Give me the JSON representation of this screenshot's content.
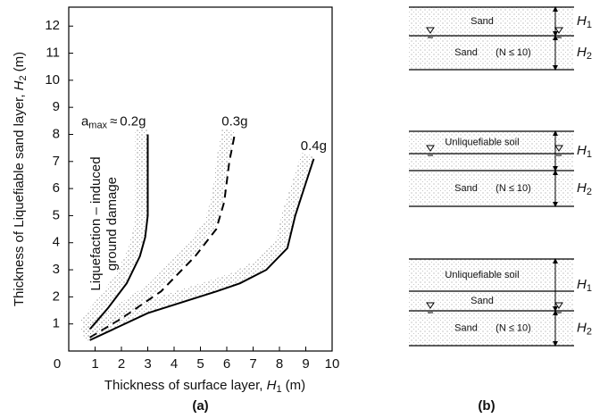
{
  "chart_data": {
    "type": "line",
    "x_label": {
      "text": "Thickness of surface layer, ",
      "symbol": "H",
      "subscript": "1",
      "unit": "(m)"
    },
    "y_label": {
      "text": "Thickness of Liquefiable sand layer, ",
      "symbol": "H",
      "subscript": "2",
      "unit": "(m)"
    },
    "annotation": [
      "Liquefaction – induced",
      "ground damage"
    ],
    "curve_prefix": {
      "symbol": "a",
      "subscript": "max",
      "relation": "≈"
    },
    "caption": "(a)",
    "xlim": [
      0,
      10
    ],
    "ylim": [
      0,
      12.7
    ],
    "xticks": [
      0,
      1,
      2,
      3,
      4,
      5,
      6,
      7,
      8,
      9,
      10
    ],
    "yticks": [
      1,
      2,
      3,
      4,
      5,
      6,
      7,
      8,
      9,
      10,
      11,
      12
    ],
    "series": [
      {
        "name": "0.2g",
        "color": "#000000",
        "dash": false,
        "x": [
          0.8,
          1.5,
          2.2,
          2.7,
          2.9,
          3.0,
          3.0
        ],
        "values": [
          0.8,
          1.6,
          2.5,
          3.5,
          4.2,
          5.0,
          8.0
        ]
      },
      {
        "name": "0.3g",
        "color": "#000000",
        "dash": true,
        "x": [
          0.8,
          2.0,
          3.5,
          4.8,
          5.6,
          5.9,
          6.1,
          6.3
        ],
        "values": [
          0.5,
          1.2,
          2.2,
          3.5,
          4.5,
          5.5,
          7.0,
          8.0
        ]
      },
      {
        "name": "0.4g",
        "color": "#000000",
        "dash": false,
        "x": [
          0.8,
          3.0,
          5.6,
          6.5,
          7.5,
          8.3,
          8.6,
          9.0,
          9.3
        ],
        "values": [
          0.4,
          1.4,
          2.2,
          2.5,
          3.0,
          3.8,
          5.0,
          6.2,
          7.1
        ]
      }
    ]
  },
  "diagram": {
    "caption": "(b)",
    "panels": [
      {
        "layers": [
          {
            "label": "Sand"
          },
          {
            "label": "Sand",
            "note": "(N ≤ 10)"
          }
        ],
        "dims": [
          {
            "symbol": "H",
            "subscript": "1"
          },
          {
            "symbol": "H",
            "subscript": "2"
          }
        ]
      },
      {
        "layers": [
          {
            "label": "Unliquefiable soil"
          },
          {
            "label": "Sand",
            "note": "(N ≤ 10)"
          }
        ],
        "dims": [
          {
            "symbol": "H",
            "subscript": "1"
          },
          {
            "symbol": "H",
            "subscript": "2"
          }
        ]
      },
      {
        "layers": [
          {
            "label": "Unliquefiable soil"
          },
          {
            "label": "Sand"
          },
          {
            "label": "Sand",
            "note": "(N ≤ 10)"
          }
        ],
        "dims": [
          {
            "symbol": "H",
            "subscript": "1"
          },
          {
            "symbol": "H",
            "subscript": "2"
          }
        ]
      }
    ]
  }
}
